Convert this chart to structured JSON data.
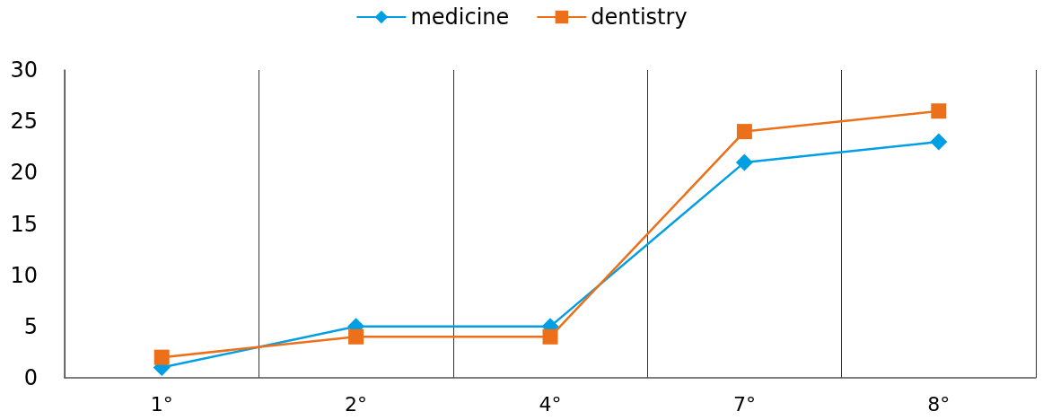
{
  "chart_data": {
    "type": "line",
    "categories": [
      "1°",
      "2°",
      "4°",
      "7°",
      "8°"
    ],
    "series": [
      {
        "name": "medicine",
        "color": "#009fe3",
        "values": [
          1,
          5,
          5,
          21,
          23
        ],
        "marker": "diamond"
      },
      {
        "name": "dentistry",
        "color": "#ec7019",
        "values": [
          2,
          4,
          4,
          24,
          26
        ],
        "marker": "square"
      }
    ],
    "ylim": [
      0,
      30
    ],
    "yticks": [
      0,
      5,
      10,
      15,
      20,
      25,
      30
    ],
    "grid": "x",
    "legend": "top",
    "line_style": "solid"
  }
}
